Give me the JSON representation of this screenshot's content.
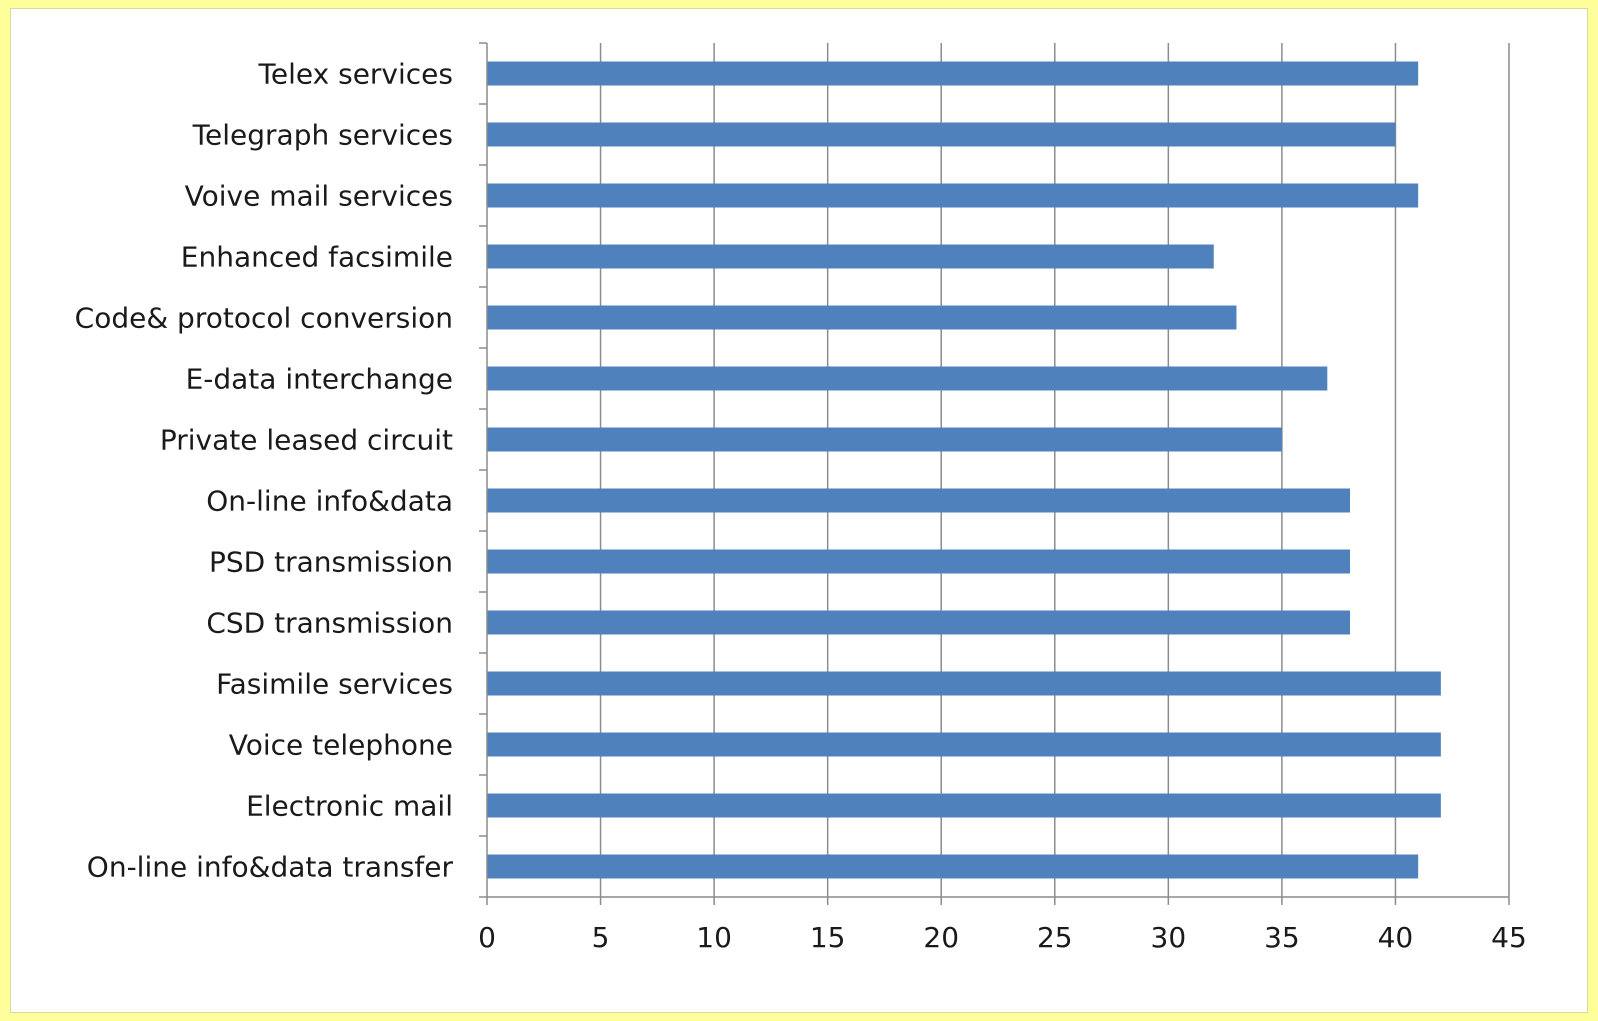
{
  "chart_data": {
    "type": "bar",
    "orientation": "horizontal",
    "categories": [
      "Telex services",
      "Telegraph services",
      "Voive mail services",
      "Enhanced facsimile",
      "Code& protocol conversion",
      "E-data interchange",
      "Private leased  circuit",
      "On-line info&data",
      "PSD transmission",
      "CSD transmission",
      "Fasimile services",
      "Voice telephone",
      "Electronic mail",
      "On-line info&data transfer"
    ],
    "values": [
      41,
      40,
      41,
      32,
      33,
      37,
      35,
      38,
      38,
      38,
      42,
      42,
      42,
      41
    ],
    "xlim": [
      0,
      45
    ],
    "xticks": [
      "0",
      "5",
      "10",
      "15",
      "20",
      "25",
      "30",
      "35",
      "40",
      "45"
    ],
    "grid": true,
    "legend": "none",
    "colors": {
      "bar": "#4f81bd",
      "grid": "#8c8c8c",
      "background": "#fefe9a",
      "plot": "#ffffff"
    }
  }
}
